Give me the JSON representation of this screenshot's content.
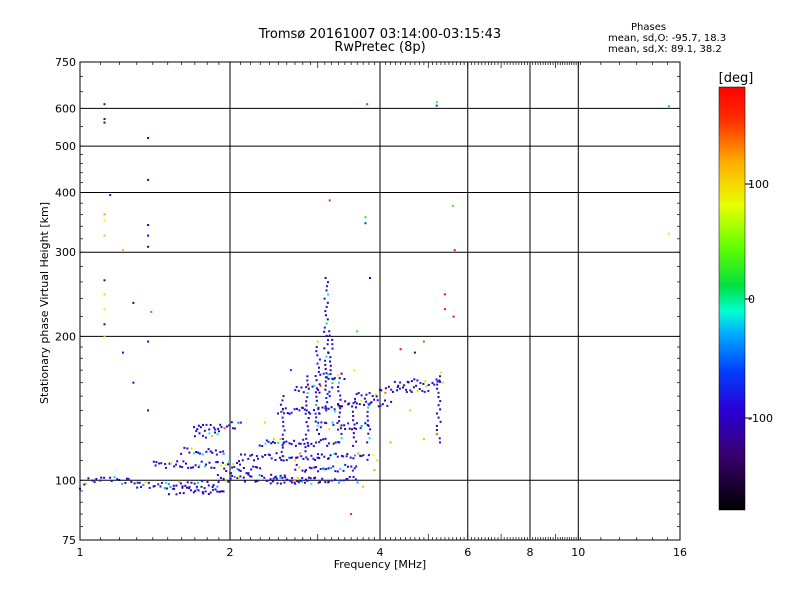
{
  "chart_data": {
    "type": "scatter",
    "title": "Tromsø 20161007 03:14:00-03:15:43",
    "subtitle": "RwPretec (8p)",
    "xlabel": "Frequency [MHz]",
    "ylabel": "Stationary phase Virtual Height [km]",
    "x_scale": "log",
    "y_scale": "log",
    "xlim": [
      1,
      16
    ],
    "ylim": [
      75,
      750
    ],
    "x_ticks": [
      "1",
      "2",
      "4",
      "6",
      "8",
      "10",
      "16"
    ],
    "y_ticks": [
      "75",
      "100",
      "200",
      "300",
      "400",
      "500",
      "600",
      "750"
    ],
    "grid": true,
    "stats": {
      "heading": "Phases",
      "o_line": "mean, sd,O: -95.7, 18.3",
      "x_line": "mean, sd,X:  89.1, 38.2"
    },
    "colorbar": {
      "label": "[deg]",
      "ticks": [
        "100",
        "0",
        "-100"
      ],
      "range": [
        -180,
        180
      ],
      "colormap": "rainbow (black-purple-blue-cyan-green-yellow-orange-red)"
    },
    "bands": [
      {
        "x_range": [
          1.5,
          1.95
        ],
        "height": 95
      },
      {
        "x_range": [
          1.3,
          1.9
        ],
        "height": 98
      },
      {
        "x_range": [
          1.9,
          2.7
        ],
        "height": 101
      },
      {
        "x_range": [
          2.7,
          3.6
        ],
        "height": 106
      },
      {
        "x_range": [
          3.0,
          3.8
        ],
        "height": 112
      },
      {
        "x_range": [
          1.4,
          2.1
        ],
        "height": 108
      },
      {
        "x_range": [
          2.1,
          3.0
        ],
        "height": 112
      },
      {
        "x_range": [
          2.3,
          3.3
        ],
        "height": 120
      },
      {
        "x_range": [
          3.0,
          3.8
        ],
        "height": 130
      },
      {
        "x_range": [
          2.5,
          3.3
        ],
        "height": 140
      },
      {
        "x_range": [
          3.3,
          4.2
        ],
        "height": 145
      },
      {
        "x_range": [
          4.0,
          5.0
        ],
        "height": 155
      },
      {
        "x_range": [
          1.7,
          2.1
        ],
        "height": 130
      },
      {
        "x_range": [
          1.7,
          1.9
        ],
        "height": 125
      },
      {
        "x_range": [
          1.6,
          1.95
        ],
        "height": 115
      },
      {
        "x_range": [
          2.4,
          2.9
        ],
        "height": 100
      },
      {
        "x_range": [
          2.7,
          3.6
        ],
        "height": 100
      },
      {
        "x_range": [
          1.15,
          1.3
        ],
        "height": 100
      },
      {
        "x_range": [
          1.03,
          1.12
        ],
        "height": 100
      },
      {
        "x_range": [
          3.6,
          3.95
        ],
        "height": 150
      },
      {
        "x_range": [
          4.3,
          5.3
        ],
        "height": 160
      },
      {
        "x_range": [
          2.7,
          3.05
        ],
        "height": 155
      },
      {
        "x_range": [
          3.05,
          3.4
        ],
        "height": 165
      },
      {
        "x_range": [
          1.95,
          2.3
        ],
        "height": 105
      }
    ],
    "columns": [
      {
        "x": 3.12,
        "height_range": [
          140,
          265
        ]
      },
      {
        "x": 3.18,
        "height_range": [
          150,
          205
        ]
      },
      {
        "x": 3.0,
        "height_range": [
          125,
          190
        ]
      },
      {
        "x": 2.85,
        "height_range": [
          115,
          165
        ]
      },
      {
        "x": 3.32,
        "height_range": [
          120,
          160
        ]
      },
      {
        "x": 3.55,
        "height_range": [
          118,
          148
        ]
      },
      {
        "x": 3.8,
        "height_range": [
          120,
          145
        ]
      },
      {
        "x": 2.55,
        "height_range": [
          110,
          150
        ]
      },
      {
        "x": 5.25,
        "height_range": [
          120,
          165
        ]
      }
    ],
    "points": [
      {
        "x": 1.12,
        "y": 612,
        "phase": -120
      },
      {
        "x": 1.12,
        "y": 570,
        "phase": -110
      },
      {
        "x": 1.12,
        "y": 560,
        "phase": -140
      },
      {
        "x": 1.12,
        "y": 360,
        "phase": 120
      },
      {
        "x": 1.12,
        "y": 350,
        "phase": 80
      },
      {
        "x": 1.12,
        "y": 325,
        "phase": 110
      },
      {
        "x": 1.12,
        "y": 262,
        "phase": -120
      },
      {
        "x": 1.12,
        "y": 245,
        "phase": 100
      },
      {
        "x": 1.12,
        "y": 228,
        "phase": 70
      },
      {
        "x": 1.12,
        "y": 212,
        "phase": -130
      },
      {
        "x": 1.12,
        "y": 200,
        "phase": 110
      },
      {
        "x": 1.15,
        "y": 395,
        "phase": -95
      },
      {
        "x": 1.22,
        "y": 303,
        "phase": 110
      },
      {
        "x": 1.22,
        "y": 185,
        "phase": -90
      },
      {
        "x": 1.28,
        "y": 235,
        "phase": -110
      },
      {
        "x": 1.28,
        "y": 160,
        "phase": -100
      },
      {
        "x": 1.37,
        "y": 520,
        "phase": -110
      },
      {
        "x": 1.37,
        "y": 425,
        "phase": -110
      },
      {
        "x": 1.37,
        "y": 342,
        "phase": -105
      },
      {
        "x": 1.37,
        "y": 325,
        "phase": -115
      },
      {
        "x": 1.37,
        "y": 308,
        "phase": -110
      },
      {
        "x": 1.37,
        "y": 195,
        "phase": -100
      },
      {
        "x": 1.37,
        "y": 140,
        "phase": -120
      },
      {
        "x": 1.39,
        "y": 225,
        "phase": 140
      },
      {
        "x": 3.17,
        "y": 385,
        "phase": 150
      },
      {
        "x": 3.77,
        "y": 612,
        "phase": 150
      },
      {
        "x": 3.74,
        "y": 355,
        "phase": 20
      },
      {
        "x": 3.74,
        "y": 345,
        "phase": -60
      },
      {
        "x": 3.82,
        "y": 265,
        "phase": -100
      },
      {
        "x": 3.7,
        "y": 97,
        "phase": 110
      },
      {
        "x": 3.5,
        "y": 85,
        "phase": 150
      },
      {
        "x": 5.2,
        "y": 618,
        "phase": 30
      },
      {
        "x": 5.2,
        "y": 608,
        "phase": -60
      },
      {
        "x": 5.6,
        "y": 375,
        "phase": 30
      },
      {
        "x": 5.65,
        "y": 303,
        "phase": 170
      },
      {
        "x": 5.4,
        "y": 245,
        "phase": 175
      },
      {
        "x": 5.4,
        "y": 228,
        "phase": 170
      },
      {
        "x": 5.62,
        "y": 220,
        "phase": 175
      },
      {
        "x": 4.4,
        "y": 188,
        "phase": 175
      },
      {
        "x": 4.9,
        "y": 195,
        "phase": 140
      },
      {
        "x": 4.7,
        "y": 185,
        "phase": -120
      },
      {
        "x": 4.9,
        "y": 122,
        "phase": 110
      },
      {
        "x": 5.2,
        "y": 125,
        "phase": 130
      },
      {
        "x": 4.2,
        "y": 120,
        "phase": 120
      },
      {
        "x": 5.3,
        "y": 168,
        "phase": 70
      },
      {
        "x": 5.35,
        "y": 160,
        "phase": 60
      },
      {
        "x": 4.6,
        "y": 140,
        "phase": 60
      },
      {
        "x": 3.95,
        "y": 110,
        "phase": 100
      },
      {
        "x": 3.9,
        "y": 105,
        "phase": 120
      },
      {
        "x": 3.88,
        "y": 113,
        "phase": 80
      },
      {
        "x": 3.0,
        "y": 195,
        "phase": 60
      },
      {
        "x": 3.6,
        "y": 205,
        "phase": 20
      },
      {
        "x": 3.55,
        "y": 170,
        "phase": 80
      },
      {
        "x": 2.65,
        "y": 170,
        "phase": -60
      },
      {
        "x": 2.7,
        "y": 110,
        "phase": 100
      },
      {
        "x": 2.45,
        "y": 122,
        "phase": 60
      },
      {
        "x": 2.35,
        "y": 132,
        "phase": 100
      },
      {
        "x": 1.0,
        "y": 96,
        "phase": -100
      },
      {
        "x": 1.02,
        "y": 98,
        "phase": -90
      },
      {
        "x": 15.2,
        "y": 328,
        "phase": 90
      },
      {
        "x": 15.2,
        "y": 606,
        "phase": -30
      }
    ]
  }
}
